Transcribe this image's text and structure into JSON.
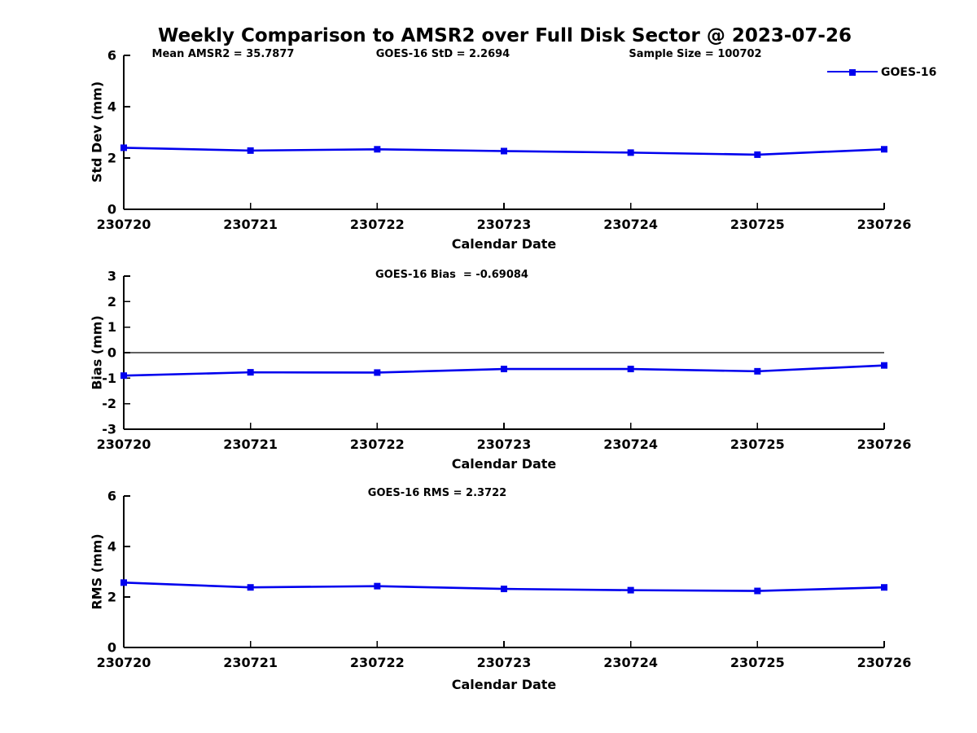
{
  "title": "Weekly Comparison to AMSR2 over Full Disk Sector @ 2023-07-26",
  "stats": {
    "mean_amsr2": "Mean AMSR2 = 35.7877",
    "goes16_std": "GOES-16 StD = 2.2694",
    "sample_size": "Sample Size = 100702"
  },
  "legend": {
    "label": "GOES-16",
    "position": "top-right"
  },
  "colors": {
    "series": "#0000ee",
    "axis": "#000000",
    "background": "#ffffff"
  },
  "chart_data": [
    {
      "type": "line",
      "subtitle": "",
      "x": [
        "230720",
        "230721",
        "230722",
        "230723",
        "230724",
        "230725",
        "230726"
      ],
      "series": [
        {
          "name": "GOES-16",
          "values": [
            2.4,
            2.29,
            2.34,
            2.27,
            2.21,
            2.13,
            2.34
          ]
        }
      ],
      "xlabel": "Calendar Date",
      "ylabel": "Std Dev (mm)",
      "ylim": [
        0,
        6
      ],
      "yticks": [
        0,
        2,
        4,
        6
      ],
      "grid": false,
      "zero_line": false,
      "marker": "square"
    },
    {
      "type": "line",
      "subtitle": "GOES-16 Bias  = -0.69084",
      "x": [
        "230720",
        "230721",
        "230722",
        "230723",
        "230724",
        "230725",
        "230726"
      ],
      "series": [
        {
          "name": "GOES-16",
          "values": [
            -0.9,
            -0.77,
            -0.78,
            -0.64,
            -0.64,
            -0.73,
            -0.5
          ]
        }
      ],
      "xlabel": "Calendar Date",
      "ylabel": "Bias (mm)",
      "ylim": [
        -3,
        3
      ],
      "yticks": [
        3,
        2,
        1,
        0,
        -1,
        -2,
        -3
      ],
      "grid": false,
      "zero_line": true,
      "marker": "square"
    },
    {
      "type": "line",
      "subtitle": "GOES-16 RMS = 2.3722",
      "x": [
        "230720",
        "230721",
        "230722",
        "230723",
        "230724",
        "230725",
        "230726"
      ],
      "series": [
        {
          "name": "GOES-16",
          "values": [
            2.57,
            2.38,
            2.43,
            2.32,
            2.27,
            2.24,
            2.38
          ]
        }
      ],
      "xlabel": "Calendar Date",
      "ylabel": "RMS (mm)",
      "ylim": [
        0,
        6
      ],
      "yticks": [
        0,
        2,
        4,
        6
      ],
      "grid": false,
      "zero_line": false,
      "marker": "square"
    }
  ]
}
